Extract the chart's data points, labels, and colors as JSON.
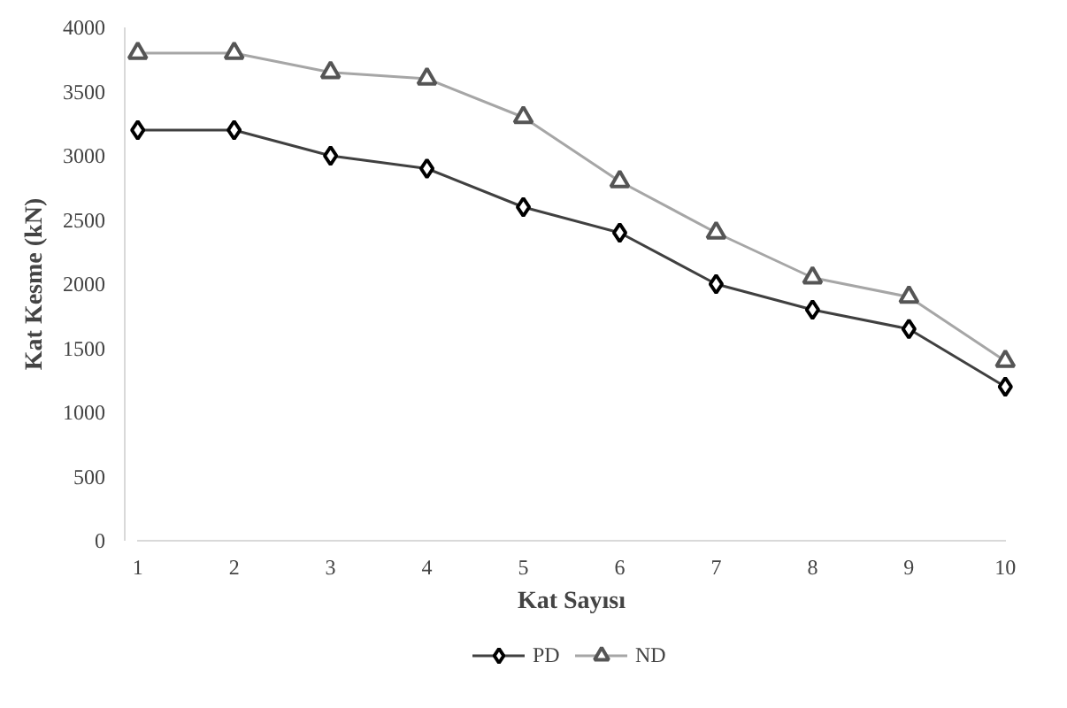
{
  "chart_data": {
    "type": "line",
    "xlabel": "Kat Sayısı",
    "ylabel": "Kat Kesme (kN)",
    "x": [
      1,
      2,
      3,
      4,
      5,
      6,
      7,
      8,
      9,
      10
    ],
    "xlim": [
      1,
      10
    ],
    "xticks": [
      1,
      2,
      3,
      4,
      5,
      6,
      7,
      8,
      9,
      10
    ],
    "ylim": [
      0,
      4000
    ],
    "yticks": [
      0,
      500,
      1000,
      1500,
      2000,
      2500,
      3000,
      3500,
      4000
    ],
    "grid": false,
    "legend": "bottom",
    "series": [
      {
        "name": "PD",
        "color": "#404040",
        "marker": "diamond",
        "values": [
          3200,
          3200,
          3000,
          2900,
          2600,
          2400,
          2000,
          1800,
          1650,
          1200
        ]
      },
      {
        "name": "ND",
        "color": "#a6a6a6",
        "marker": "triangle",
        "values": [
          3800,
          3800,
          3650,
          3600,
          3300,
          2800,
          2400,
          2050,
          1900,
          1400
        ]
      }
    ]
  }
}
